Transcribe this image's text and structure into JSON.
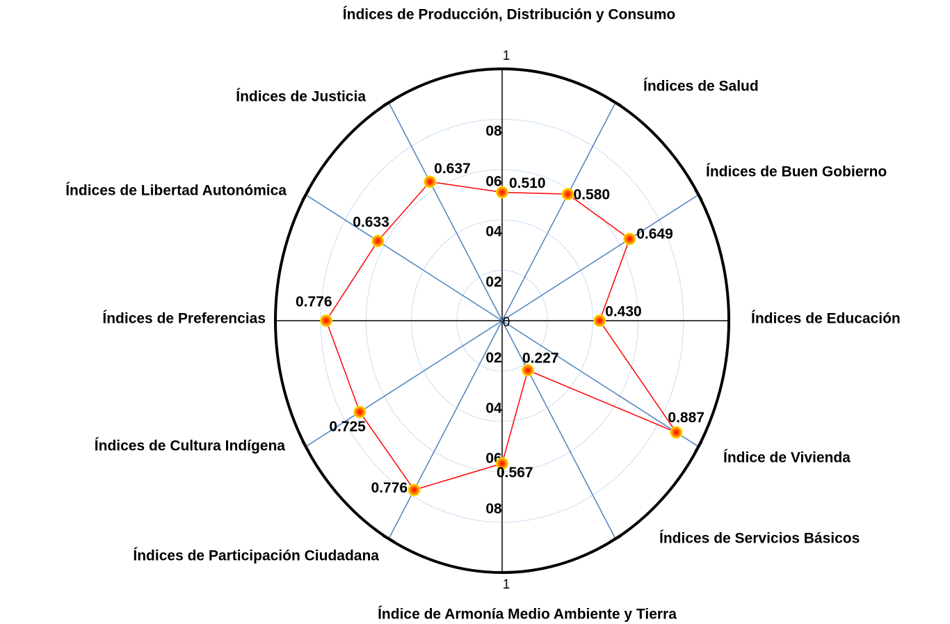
{
  "chart_data": {
    "type": "radar",
    "title": "Índices de Producción, Distribución y Consumo",
    "categories": [
      "Índices de Producción, Distribución y Consumo",
      "Índices de Salud",
      "Índices de Buen Gobierno",
      "Índices de Educación",
      "Índice de Vivienda",
      "Índices de Servicios Básicos",
      "Índice de Armonía Medio Ambiente y Tierra",
      "Índices de Participación Ciudadana",
      "Índices de Cultura Indígena",
      "Índices de Preferencias",
      "Índices de Libertad Autonómica",
      "Índices de Justicia"
    ],
    "values": [
      0.51,
      0.58,
      0.649,
      0.43,
      0.887,
      0.227,
      0.567,
      0.776,
      0.725,
      0.776,
      0.633,
      0.637
    ],
    "value_labels": [
      "0.510",
      "0.580",
      "0.649",
      "0.430",
      "0.887",
      "0.227",
      "0.567",
      "0.776",
      "0.725",
      "0.776",
      "0.633",
      "0.637"
    ],
    "color": "#ff0000",
    "ylim": [
      0,
      1
    ],
    "yticks": [
      0,
      {
        "value": 0.2,
        "label": "02"
      },
      {
        "value": 0.4,
        "label": "04"
      },
      {
        "value": 0.6,
        "label": "06"
      },
      {
        "value": 0.8,
        "label": "08"
      },
      1
    ],
    "grid": true
  }
}
